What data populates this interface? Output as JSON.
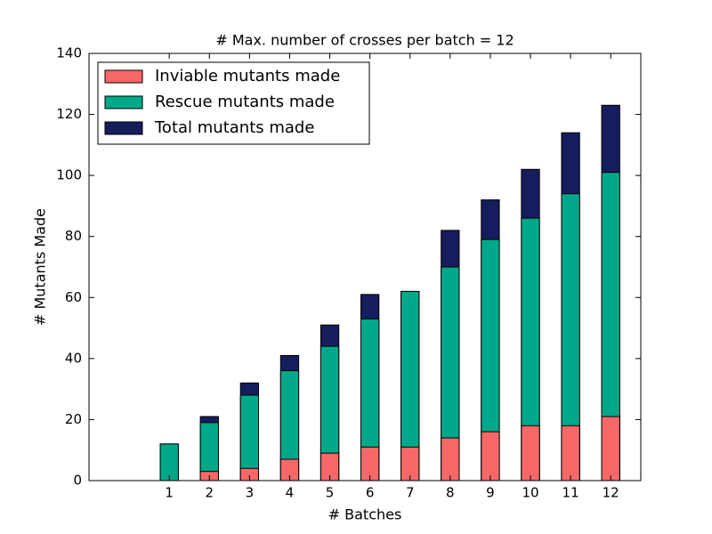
{
  "chart_data": {
    "type": "bar",
    "title": "# Max. number of crosses per batch = 12",
    "xlabel": "# Batches",
    "ylabel": "# Mutants Made",
    "x": [
      1,
      2,
      3,
      4,
      5,
      6,
      7,
      8,
      9,
      10,
      11,
      12
    ],
    "series": [
      {
        "name": "Inviable mutants made",
        "color": "#f76868",
        "values": [
          0,
          3,
          4,
          7,
          9,
          11,
          11,
          14,
          16,
          18,
          18,
          21
        ]
      },
      {
        "name": "Rescue mutants made",
        "color": "#00a88a",
        "values": [
          12,
          19,
          28,
          36,
          44,
          53,
          62,
          70,
          79,
          86,
          94,
          101
        ]
      },
      {
        "name": "Total mutants made",
        "color": "#161d5c",
        "values": [
          12,
          21,
          32,
          41,
          51,
          61,
          62,
          82,
          92,
          102,
          114,
          123
        ]
      }
    ],
    "overlap": true,
    "xlim": [
      -1,
      12.75
    ],
    "xticks": [
      1,
      2,
      3,
      4,
      5,
      6,
      7,
      8,
      9,
      10,
      11,
      12
    ],
    "ylim": [
      0,
      140
    ],
    "yticks": [
      0,
      20,
      40,
      60,
      80,
      100,
      120,
      140
    ],
    "legend": "upper left"
  }
}
